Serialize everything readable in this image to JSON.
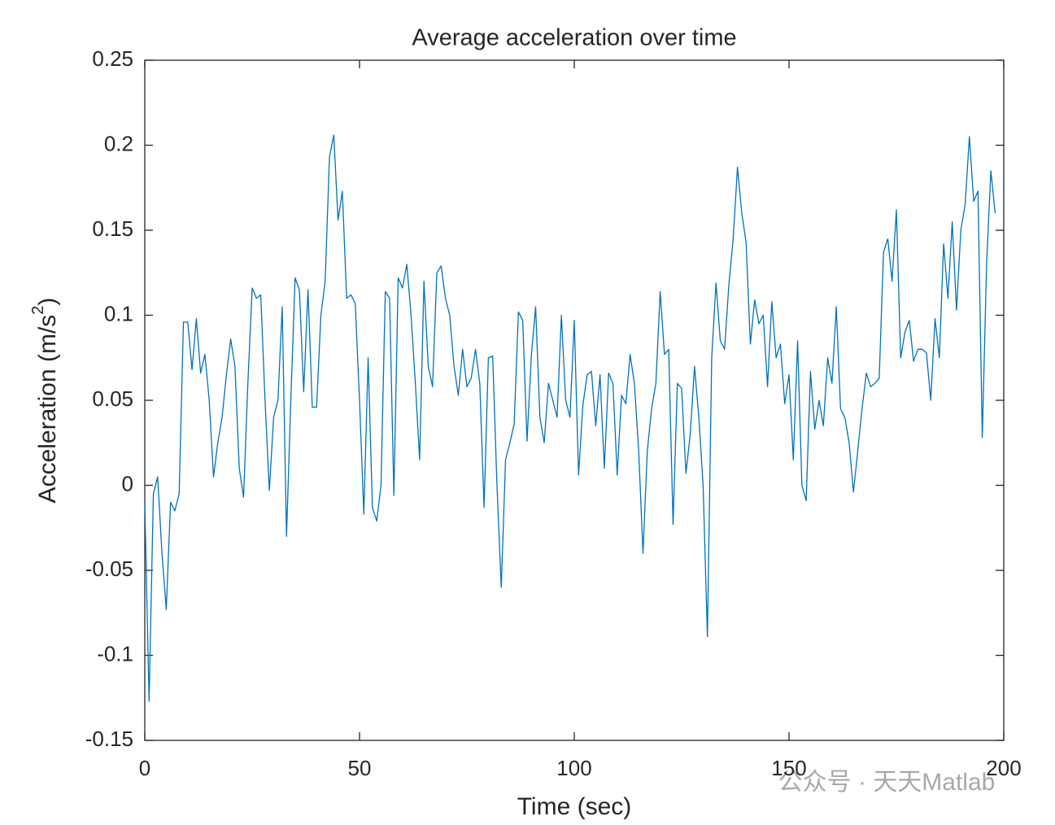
{
  "chart_data": {
    "type": "line",
    "title": "Average acceleration over time",
    "xlabel": "Time (sec)",
    "ylabel": {
      "text": "Acceleration (m/s",
      "sup": "2",
      "end": ")"
    },
    "watermark": "公众号 · 天天Matlab",
    "grid": false,
    "xlim": [
      0,
      200
    ],
    "xticks": [
      0,
      50,
      100,
      150,
      200
    ],
    "ylim": [
      -0.15,
      0.25
    ],
    "yticks": [
      -0.15,
      -0.1,
      -0.05,
      0,
      0.05,
      0.1,
      0.15,
      0.2,
      0.25
    ],
    "x": [
      0,
      1,
      2,
      3,
      4,
      5,
      6,
      7,
      8,
      9,
      10,
      11,
      12,
      13,
      14,
      15,
      16,
      17,
      18,
      19,
      20,
      21,
      22,
      23,
      24,
      25,
      26,
      27,
      28,
      29,
      30,
      31,
      32,
      33,
      34,
      35,
      36,
      37,
      38,
      39,
      40,
      41,
      42,
      43,
      44,
      45,
      46,
      47,
      48,
      49,
      50,
      51,
      52,
      53,
      54,
      55,
      56,
      57,
      58,
      59,
      60,
      61,
      62,
      63,
      64,
      65,
      66,
      67,
      68,
      69,
      70,
      71,
      72,
      73,
      74,
      75,
      76,
      77,
      78,
      79,
      80,
      81,
      82,
      83,
      84,
      85,
      86,
      87,
      88,
      89,
      90,
      91,
      92,
      93,
      94,
      95,
      96,
      97,
      98,
      99,
      100,
      101,
      102,
      103,
      104,
      105,
      106,
      107,
      108,
      109,
      110,
      111,
      112,
      113,
      114,
      115,
      116,
      117,
      118,
      119,
      120,
      121,
      122,
      123,
      124,
      125,
      126,
      127,
      128,
      129,
      130,
      131,
      132,
      133,
      134,
      135,
      136,
      137,
      138,
      139,
      140,
      141,
      142,
      143,
      144,
      145,
      146,
      147,
      148,
      149,
      150,
      151,
      152,
      153,
      154,
      155,
      156,
      157,
      158,
      159,
      160,
      161,
      162,
      163,
      164,
      165,
      166,
      167,
      168,
      169,
      170,
      171,
      172,
      173,
      174,
      175,
      176,
      177,
      178,
      179,
      180,
      181,
      182,
      183,
      184,
      185,
      186,
      187,
      188,
      189,
      190,
      191,
      192,
      193,
      194,
      195,
      196,
      197,
      198
    ],
    "series": [
      {
        "color": "#0072bd",
        "values": [
          -0.01,
          -0.127,
          -0.005,
          0.005,
          -0.04,
          -0.073,
          -0.01,
          -0.015,
          -0.005,
          0.096,
          0.096,
          0.068,
          0.098,
          0.066,
          0.077,
          0.05,
          0.005,
          0.025,
          0.04,
          0.065,
          0.086,
          0.07,
          0.01,
          -0.007,
          0.06,
          0.116,
          0.11,
          0.112,
          0.05,
          -0.003,
          0.04,
          0.05,
          0.105,
          -0.03,
          0.05,
          0.122,
          0.115,
          0.055,
          0.115,
          0.046,
          0.046,
          0.1,
          0.12,
          0.193,
          0.206,
          0.156,
          0.173,
          0.11,
          0.112,
          0.107,
          0.05,
          -0.017,
          0.075,
          -0.013,
          -0.021,
          0,
          0.114,
          0.11,
          -0.006,
          0.122,
          0.116,
          0.13,
          0.1,
          0.06,
          0.015,
          0.12,
          0.07,
          0.058,
          0.125,
          0.129,
          0.11,
          0.1,
          0.07,
          0.053,
          0.08,
          0.058,
          0.063,
          0.08,
          0.06,
          -0.013,
          0.075,
          0.076,
          0,
          -0.06,
          0.015,
          0.025,
          0.036,
          0.102,
          0.097,
          0.026,
          0.076,
          0.105,
          0.04,
          0.025,
          0.06,
          0.05,
          0.04,
          0.1,
          0.05,
          0.04,
          0.097,
          0.006,
          0.047,
          0.065,
          0.067,
          0.035,
          0.065,
          0.01,
          0.066,
          0.06,
          0.006,
          0.053,
          0.048,
          0.077,
          0.06,
          0.02,
          -0.04,
          0.02,
          0.045,
          0.06,
          0.114,
          0.077,
          0.08,
          -0.023,
          0.06,
          0.057,
          0.007,
          0.03,
          0.07,
          0.04,
          0,
          -0.089,
          0.075,
          0.119,
          0.085,
          0.08,
          0.118,
          0.145,
          0.187,
          0.16,
          0.143,
          0.083,
          0.109,
          0.095,
          0.1,
          0.058,
          0.108,
          0.075,
          0.083,
          0.048,
          0.065,
          0.015,
          0.085,
          0,
          -0.009,
          0.067,
          0.033,
          0.05,
          0.035,
          0.075,
          0.06,
          0.105,
          0.045,
          0.04,
          0.025,
          -0.004,
          0.02,
          0.045,
          0.066,
          0.058,
          0.06,
          0.063,
          0.137,
          0.145,
          0.12,
          0.162,
          0.075,
          0.09,
          0.097,
          0.073,
          0.08,
          0.08,
          0.078,
          0.05,
          0.098,
          0.075,
          0.142,
          0.11,
          0.155,
          0.103,
          0.15,
          0.165,
          0.205,
          0.167,
          0.173,
          0.028,
          0.13,
          0.185,
          0.16
        ]
      }
    ]
  }
}
